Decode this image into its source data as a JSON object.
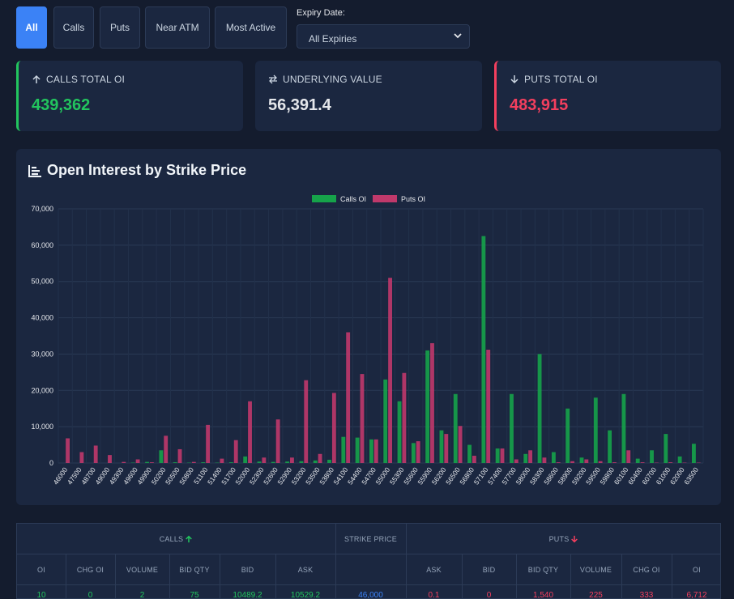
{
  "filters": {
    "buttons": [
      {
        "label": "All",
        "active": true
      },
      {
        "label": "Calls",
        "active": false
      },
      {
        "label": "Puts",
        "active": false
      },
      {
        "label": "Near ATM",
        "active": false
      },
      {
        "label": "Most Active",
        "active": false
      }
    ],
    "expiry_label": "Expiry Date:",
    "expiry_value": "All Expiries"
  },
  "summary": {
    "calls": {
      "label": "CALLS TOTAL OI",
      "value": "439,362",
      "icon": "arrow-up-icon"
    },
    "underlying": {
      "label": "UNDERLYING VALUE",
      "value": "56,391.4",
      "icon": "swap-icon"
    },
    "puts": {
      "label": "PUTS TOTAL OI",
      "value": "483,915",
      "icon": "arrow-down-icon"
    }
  },
  "colors": {
    "calls": "#16a34a",
    "puts": "#c0396b",
    "accent": "#3b82f6"
  },
  "chart_data": {
    "type": "bar",
    "title": "Open Interest by Strike Price",
    "xlabel": "",
    "ylabel": "",
    "ylim": [
      0,
      70000
    ],
    "yticks": [
      "0",
      "10,000",
      "20,000",
      "30,000",
      "40,000",
      "50,000",
      "60,000",
      "70,000"
    ],
    "legend_position": "top-center",
    "categories": [
      "46000",
      "47500",
      "48700",
      "49000",
      "49300",
      "49600",
      "49900",
      "50200",
      "50500",
      "50800",
      "51100",
      "51400",
      "51700",
      "52000",
      "52300",
      "52600",
      "52900",
      "53200",
      "53500",
      "53800",
      "54100",
      "54400",
      "54700",
      "55000",
      "55300",
      "55600",
      "55900",
      "56200",
      "56500",
      "56800",
      "57100",
      "57400",
      "57700",
      "58000",
      "58300",
      "58600",
      "58900",
      "59200",
      "59500",
      "59800",
      "60100",
      "60400",
      "60700",
      "61000",
      "62000",
      "63500"
    ],
    "series": [
      {
        "name": "Calls OI",
        "values": [
          0,
          0,
          0,
          0,
          0,
          100,
          300,
          3500,
          200,
          100,
          200,
          100,
          200,
          1800,
          400,
          300,
          400,
          500,
          700,
          900,
          7200,
          7000,
          6500,
          23000,
          17000,
          5500,
          31000,
          9000,
          19000,
          5000,
          62500,
          4000,
          19000,
          2500,
          30000,
          3000,
          15000,
          1500,
          18000,
          9000,
          19000,
          1200,
          3500,
          8000,
          1800,
          5300
        ]
      },
      {
        "name": "Puts OI",
        "values": [
          6800,
          3000,
          4800,
          2200,
          300,
          1000,
          200,
          7500,
          3800,
          300,
          10500,
          1200,
          6300,
          17000,
          1500,
          12000,
          1500,
          22800,
          2500,
          19300,
          36000,
          24500,
          6500,
          51000,
          24800,
          6000,
          33000,
          8000,
          10200,
          2000,
          31200,
          4000,
          1000,
          3500,
          1500,
          200,
          500,
          1000,
          500,
          200,
          3500,
          200,
          100,
          200,
          100,
          100
        ]
      }
    ]
  },
  "table": {
    "group_calls": "CALLS",
    "group_strike": "STRIKE PRICE",
    "group_puts": "PUTS",
    "headers_calls": [
      "OI",
      "CHG OI",
      "VOLUME",
      "BID QTY",
      "BID",
      "ASK"
    ],
    "headers_puts": [
      "ASK",
      "BID",
      "BID QTY",
      "VOLUME",
      "CHG OI",
      "OI"
    ],
    "row": {
      "c_oi": "10",
      "c_chg": "0",
      "c_vol": "2",
      "c_bidqty": "75",
      "c_bid": "10489.2",
      "c_ask": "10529.2",
      "strike": "46,000",
      "p_ask": "0.1",
      "p_bid": "0",
      "p_bidqty": "1,540",
      "p_vol": "225",
      "p_chg": "333",
      "p_oi": "6,712"
    }
  }
}
